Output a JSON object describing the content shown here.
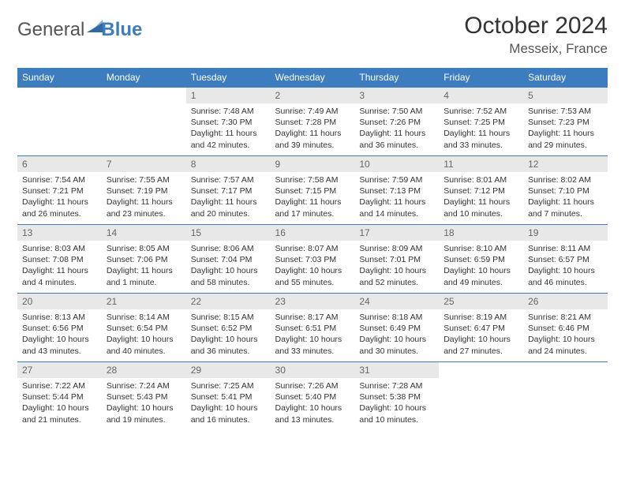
{
  "logo": {
    "gray": "General",
    "blue": "Blue",
    "mark_color": "#2f6aa8",
    "gray_color": "#6a6a6a"
  },
  "title": "October 2024",
  "subtitle": "Messeix, France",
  "colors": {
    "header_bg": "#3b7dbf",
    "daynum_bg": "#e8e8e8",
    "rule": "#3b7dbf"
  },
  "day_headers": [
    "Sunday",
    "Monday",
    "Tuesday",
    "Wednesday",
    "Thursday",
    "Friday",
    "Saturday"
  ],
  "weeks": [
    [
      {
        "n": "",
        "lines": []
      },
      {
        "n": "",
        "lines": []
      },
      {
        "n": "1",
        "lines": [
          "Sunrise: 7:48 AM",
          "Sunset: 7:30 PM",
          "Daylight: 11 hours and 42 minutes."
        ]
      },
      {
        "n": "2",
        "lines": [
          "Sunrise: 7:49 AM",
          "Sunset: 7:28 PM",
          "Daylight: 11 hours and 39 minutes."
        ]
      },
      {
        "n": "3",
        "lines": [
          "Sunrise: 7:50 AM",
          "Sunset: 7:26 PM",
          "Daylight: 11 hours and 36 minutes."
        ]
      },
      {
        "n": "4",
        "lines": [
          "Sunrise: 7:52 AM",
          "Sunset: 7:25 PM",
          "Daylight: 11 hours and 33 minutes."
        ]
      },
      {
        "n": "5",
        "lines": [
          "Sunrise: 7:53 AM",
          "Sunset: 7:23 PM",
          "Daylight: 11 hours and 29 minutes."
        ]
      }
    ],
    [
      {
        "n": "6",
        "lines": [
          "Sunrise: 7:54 AM",
          "Sunset: 7:21 PM",
          "Daylight: 11 hours and 26 minutes."
        ]
      },
      {
        "n": "7",
        "lines": [
          "Sunrise: 7:55 AM",
          "Sunset: 7:19 PM",
          "Daylight: 11 hours and 23 minutes."
        ]
      },
      {
        "n": "8",
        "lines": [
          "Sunrise: 7:57 AM",
          "Sunset: 7:17 PM",
          "Daylight: 11 hours and 20 minutes."
        ]
      },
      {
        "n": "9",
        "lines": [
          "Sunrise: 7:58 AM",
          "Sunset: 7:15 PM",
          "Daylight: 11 hours and 17 minutes."
        ]
      },
      {
        "n": "10",
        "lines": [
          "Sunrise: 7:59 AM",
          "Sunset: 7:13 PM",
          "Daylight: 11 hours and 14 minutes."
        ]
      },
      {
        "n": "11",
        "lines": [
          "Sunrise: 8:01 AM",
          "Sunset: 7:12 PM",
          "Daylight: 11 hours and 10 minutes."
        ]
      },
      {
        "n": "12",
        "lines": [
          "Sunrise: 8:02 AM",
          "Sunset: 7:10 PM",
          "Daylight: 11 hours and 7 minutes."
        ]
      }
    ],
    [
      {
        "n": "13",
        "lines": [
          "Sunrise: 8:03 AM",
          "Sunset: 7:08 PM",
          "Daylight: 11 hours and 4 minutes."
        ]
      },
      {
        "n": "14",
        "lines": [
          "Sunrise: 8:05 AM",
          "Sunset: 7:06 PM",
          "Daylight: 11 hours and 1 minute."
        ]
      },
      {
        "n": "15",
        "lines": [
          "Sunrise: 8:06 AM",
          "Sunset: 7:04 PM",
          "Daylight: 10 hours and 58 minutes."
        ]
      },
      {
        "n": "16",
        "lines": [
          "Sunrise: 8:07 AM",
          "Sunset: 7:03 PM",
          "Daylight: 10 hours and 55 minutes."
        ]
      },
      {
        "n": "17",
        "lines": [
          "Sunrise: 8:09 AM",
          "Sunset: 7:01 PM",
          "Daylight: 10 hours and 52 minutes."
        ]
      },
      {
        "n": "18",
        "lines": [
          "Sunrise: 8:10 AM",
          "Sunset: 6:59 PM",
          "Daylight: 10 hours and 49 minutes."
        ]
      },
      {
        "n": "19",
        "lines": [
          "Sunrise: 8:11 AM",
          "Sunset: 6:57 PM",
          "Daylight: 10 hours and 46 minutes."
        ]
      }
    ],
    [
      {
        "n": "20",
        "lines": [
          "Sunrise: 8:13 AM",
          "Sunset: 6:56 PM",
          "Daylight: 10 hours and 43 minutes."
        ]
      },
      {
        "n": "21",
        "lines": [
          "Sunrise: 8:14 AM",
          "Sunset: 6:54 PM",
          "Daylight: 10 hours and 40 minutes."
        ]
      },
      {
        "n": "22",
        "lines": [
          "Sunrise: 8:15 AM",
          "Sunset: 6:52 PM",
          "Daylight: 10 hours and 36 minutes."
        ]
      },
      {
        "n": "23",
        "lines": [
          "Sunrise: 8:17 AM",
          "Sunset: 6:51 PM",
          "Daylight: 10 hours and 33 minutes."
        ]
      },
      {
        "n": "24",
        "lines": [
          "Sunrise: 8:18 AM",
          "Sunset: 6:49 PM",
          "Daylight: 10 hours and 30 minutes."
        ]
      },
      {
        "n": "25",
        "lines": [
          "Sunrise: 8:19 AM",
          "Sunset: 6:47 PM",
          "Daylight: 10 hours and 27 minutes."
        ]
      },
      {
        "n": "26",
        "lines": [
          "Sunrise: 8:21 AM",
          "Sunset: 6:46 PM",
          "Daylight: 10 hours and 24 minutes."
        ]
      }
    ],
    [
      {
        "n": "27",
        "lines": [
          "Sunrise: 7:22 AM",
          "Sunset: 5:44 PM",
          "Daylight: 10 hours and 21 minutes."
        ]
      },
      {
        "n": "28",
        "lines": [
          "Sunrise: 7:24 AM",
          "Sunset: 5:43 PM",
          "Daylight: 10 hours and 19 minutes."
        ]
      },
      {
        "n": "29",
        "lines": [
          "Sunrise: 7:25 AM",
          "Sunset: 5:41 PM",
          "Daylight: 10 hours and 16 minutes."
        ]
      },
      {
        "n": "30",
        "lines": [
          "Sunrise: 7:26 AM",
          "Sunset: 5:40 PM",
          "Daylight: 10 hours and 13 minutes."
        ]
      },
      {
        "n": "31",
        "lines": [
          "Sunrise: 7:28 AM",
          "Sunset: 5:38 PM",
          "Daylight: 10 hours and 10 minutes."
        ]
      },
      {
        "n": "",
        "lines": []
      },
      {
        "n": "",
        "lines": []
      }
    ]
  ]
}
